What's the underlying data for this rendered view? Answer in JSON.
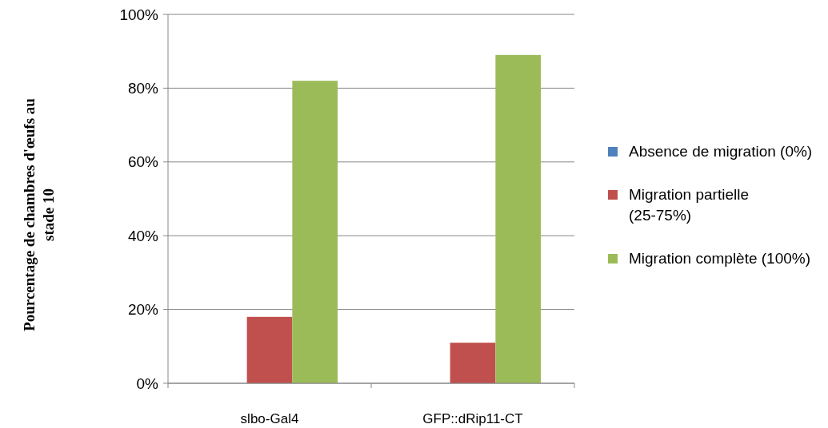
{
  "chart_data": {
    "type": "bar",
    "ylabel": "Pourcentage de chambres d'œufs au stade 10",
    "categories": [
      "slbo-Gal4",
      "GFP::dRip11-CT"
    ],
    "series": [
      {
        "name": "Absence de migration (0%)",
        "color": "#4f81bd",
        "values": [
          0,
          0
        ]
      },
      {
        "name": "Migration partielle (25-75%)",
        "color": "#c0504d",
        "values": [
          18,
          11
        ]
      },
      {
        "name": "Migration complète (100%)",
        "color": "#9bbb59",
        "values": [
          82,
          89
        ]
      }
    ],
    "ylim": [
      0,
      100
    ],
    "yticks": [
      {
        "value": 0,
        "label": "0%"
      },
      {
        "value": 20,
        "label": "20%"
      },
      {
        "value": 40,
        "label": "40%"
      },
      {
        "value": 60,
        "label": "60%"
      },
      {
        "value": 80,
        "label": "80%"
      },
      {
        "value": 100,
        "label": "100%"
      }
    ],
    "grid": "y",
    "legend": "right"
  }
}
